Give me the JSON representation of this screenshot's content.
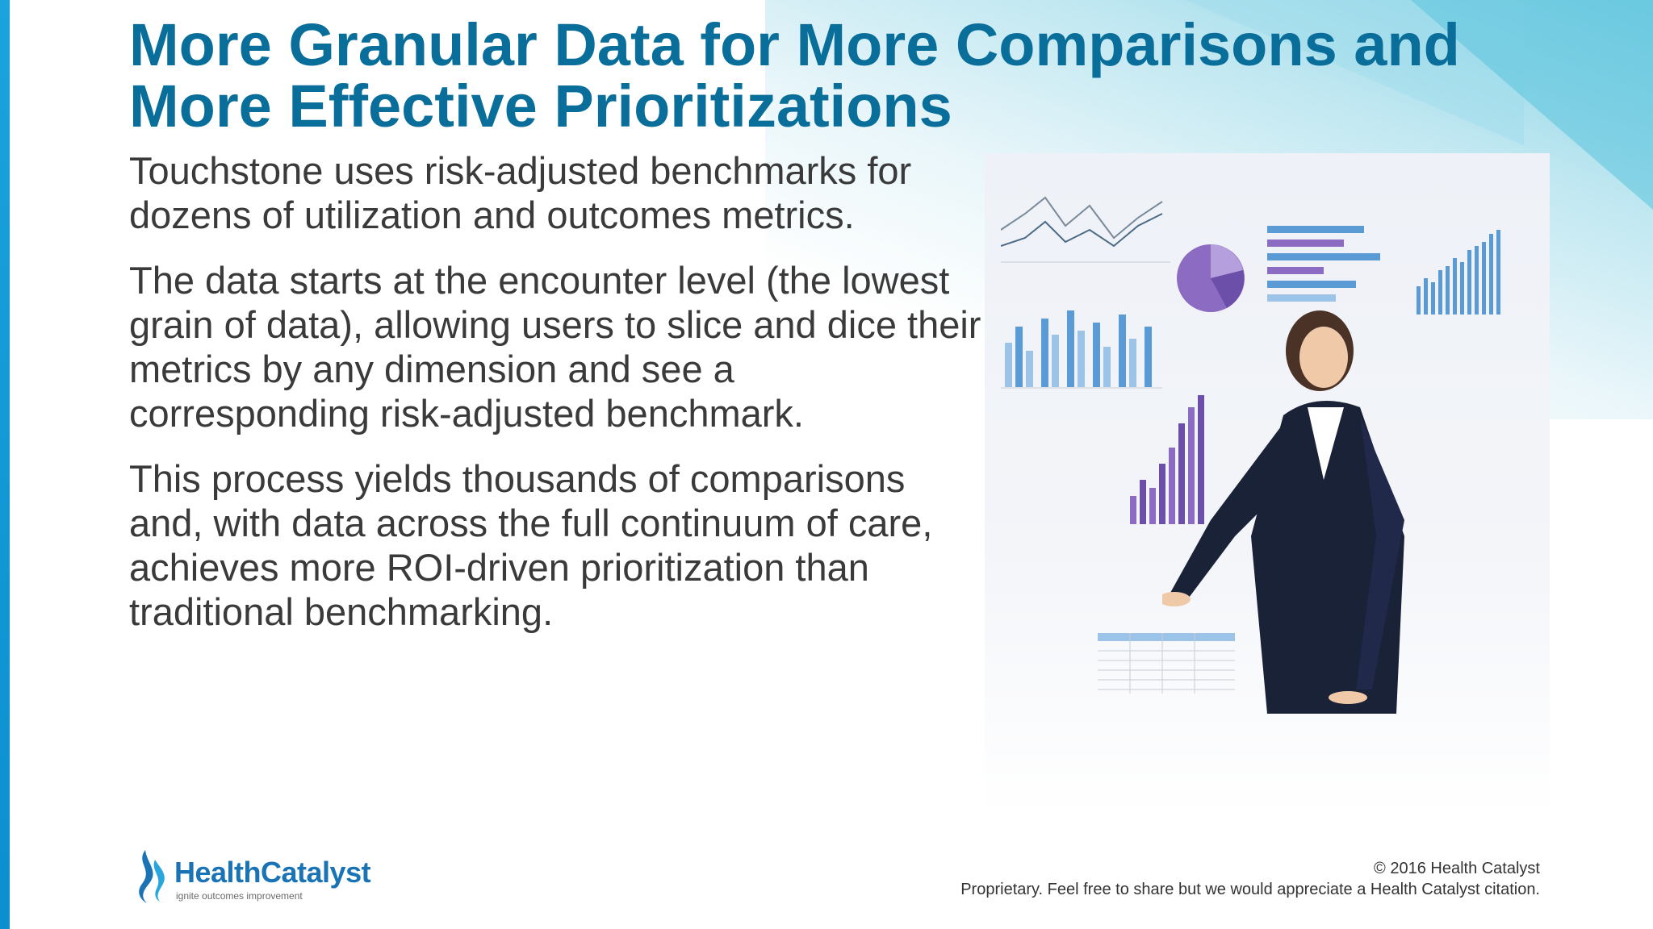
{
  "slide": {
    "title": "More Granular Data for More Comparisons and More Effective Prioritizations",
    "paragraphs": [
      "Touchstone uses risk-adjusted benchmarks for dozens of utilization and outcomes metrics.",
      "The data starts at the encounter level (the lowest grain of data), allowing users to slice and dice their metrics by any dimension and see a corresponding risk-adjusted benchmark.",
      "This process yields thousands of comparisons and, with data across the full continuum of care, achieves more ROI-driven prioritization than traditional benchmarking."
    ]
  },
  "logo": {
    "name": "HealthCatalyst",
    "tagline": "ignite outcomes improvement"
  },
  "footer": {
    "copyright": "© 2016 Health Catalyst",
    "notice": "Proprietary. Feel free to share but we would appreciate a Health Catalyst citation."
  },
  "colors": {
    "title": "#0a6e9b",
    "body_text": "#3a3a3a",
    "accent_bar": "#1aa3dc",
    "chart_blue": "#5b9bd5",
    "chart_purple": "#6b4fa8"
  }
}
